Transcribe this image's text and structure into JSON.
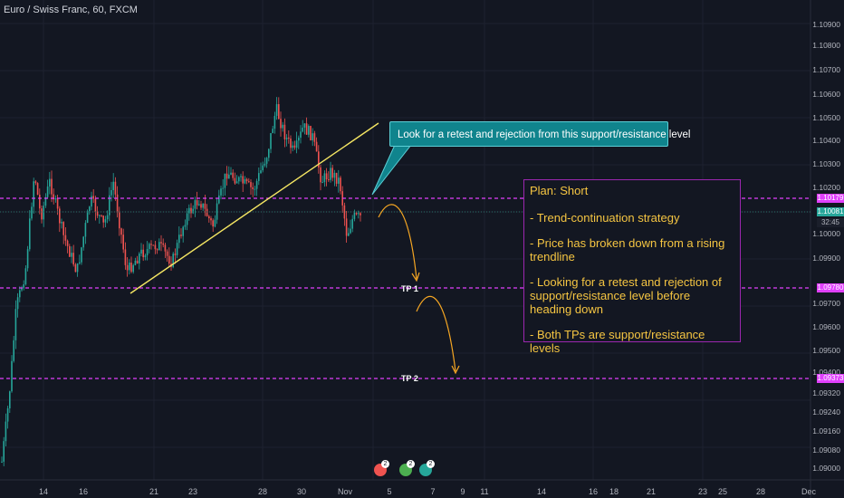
{
  "header": {
    "title": "Euro / Swiss Franc, 60, FXCM"
  },
  "y_axis": {
    "labels": [
      "1.10900",
      "1.10800",
      "1.10700",
      "1.10600",
      "1.10500",
      "1.10400",
      "1.10300",
      "1.10200",
      "1.10000",
      "1.09900",
      "1.09700",
      "1.09600",
      "1.09500",
      "1.09400",
      "1.09320",
      "1.09240",
      "1.09160",
      "1.09080",
      "1.09000"
    ]
  },
  "x_axis": {
    "labels": [
      "14",
      "16",
      "21",
      "23",
      "28",
      "30",
      "Nov",
      "5",
      "7",
      "9",
      "11",
      "14",
      "16",
      "18",
      "21",
      "23",
      "25",
      "28",
      "Dec"
    ]
  },
  "price_tags": {
    "resistance": "1.10179",
    "last_price": "1.10081",
    "countdown": "32:45",
    "tp1": "1.09780",
    "tp2": "1.09373"
  },
  "callout": {
    "text": "Look for a retest and rejection from this support/resistance level"
  },
  "plan": {
    "title": "Plan: Short",
    "lines": [
      "- Trend-continuation strategy",
      "- Price has broken down from a rising trendline",
      "- Looking for a retest and rejection of support/resistance level before heading down",
      "- Both TPs are support/resistance levels"
    ]
  },
  "tp_labels": {
    "tp1": "TP 1",
    "tp2": "TP 2"
  },
  "events": {
    "badge1": "2",
    "badge2": "2",
    "badge3": "2"
  },
  "colors": {
    "background": "#131722",
    "bull": "#26a69a",
    "bear": "#ef5350",
    "level_line": "#e040fb",
    "trendline": "#f5e663",
    "arrow": "#f5a623",
    "callout": "#10848d",
    "plan_text": "#f5c542"
  }
}
